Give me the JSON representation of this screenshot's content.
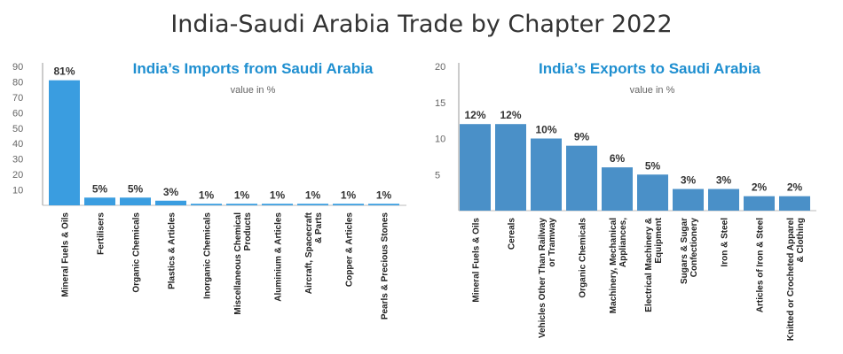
{
  "title": "India-Saudi Arabia Trade by Chapter 2022",
  "colors": {
    "imports_bar": "#3a9de0",
    "exports_bar": "#4a90c8",
    "panel_title": "#1f8fd0"
  },
  "chart_data": [
    {
      "type": "bar",
      "title": "India’s Imports from Saudi Arabia",
      "subtitle": "value in %",
      "ylim": [
        0,
        90
      ],
      "yticks": [
        10,
        20,
        30,
        40,
        50,
        60,
        70,
        80,
        90
      ],
      "categories": [
        [
          "Mineral Fuels & Oils"
        ],
        [
          "Fertilisers"
        ],
        [
          "Organic Chemicals"
        ],
        [
          "Plastics & Articles"
        ],
        [
          "Inorganic Chemicals"
        ],
        [
          "Miscellaneous Chemical",
          "Products"
        ],
        [
          "Aluminium & Articles"
        ],
        [
          "Aircraft, Spacecraft",
          "& Parts"
        ],
        [
          "Copper & Articles"
        ],
        [
          "Pearls & Precious Stones"
        ]
      ],
      "values": [
        81,
        5,
        5,
        3,
        1,
        1,
        1,
        1,
        1,
        1
      ],
      "labels": [
        "81%",
        "5%",
        "5%",
        "3%",
        "1%",
        "1%",
        "1%",
        "1%",
        "1%",
        "1%"
      ],
      "grid": false
    },
    {
      "type": "bar",
      "title": "India’s Exports to Saudi Arabia",
      "subtitle": "value in %",
      "ylim": [
        0,
        20
      ],
      "yticks": [
        5,
        10,
        15,
        20
      ],
      "categories": [
        [
          "Mineral Fuels & Oils"
        ],
        [
          "Cereals"
        ],
        [
          "Vehicles Other Than Railway",
          "or Tramway"
        ],
        [
          "Organic Chemicals"
        ],
        [
          "Machinery, Mechanical",
          "Appliances,"
        ],
        [
          "Electrical Machinery &",
          "Equipment"
        ],
        [
          "Sugars & Sugar",
          "Confectionery"
        ],
        [
          "Iron & Steel"
        ],
        [
          "Articles of Iron & Steel"
        ],
        [
          "Knitted or Crocheted Apparel",
          "& Clothing"
        ]
      ],
      "values": [
        12,
        12,
        10,
        9,
        6,
        5,
        3,
        3,
        2,
        2
      ],
      "labels": [
        "12%",
        "12%",
        "10%",
        "9%",
        "6%",
        "5%",
        "3%",
        "3%",
        "2%",
        "2%"
      ],
      "grid": false
    }
  ]
}
